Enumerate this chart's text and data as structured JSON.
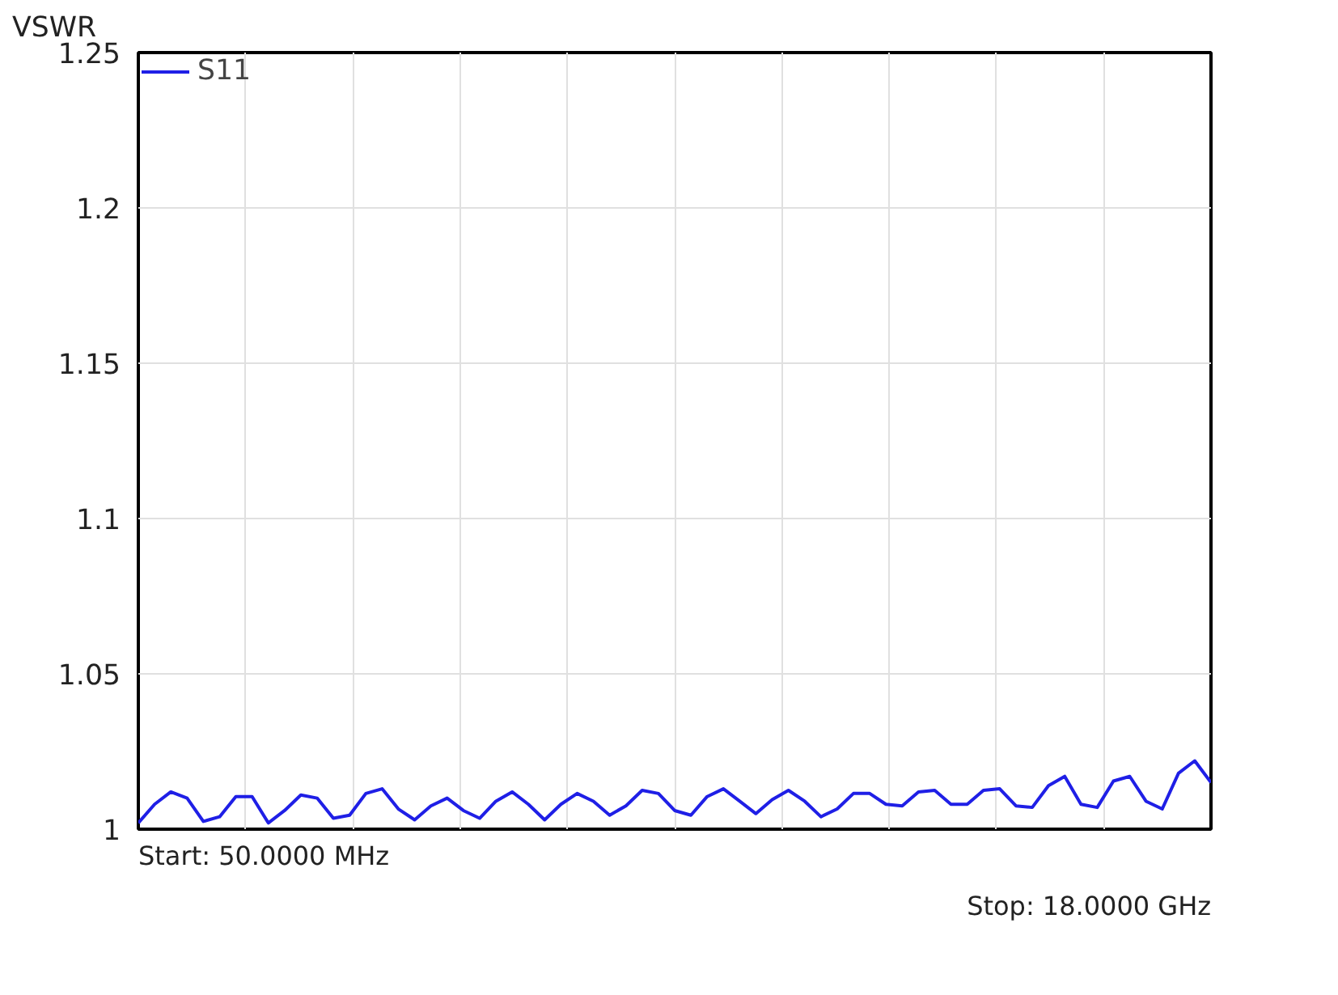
{
  "chart_data": {
    "type": "line",
    "ylabel": "VSWR",
    "categories": [
      null,
      null,
      null,
      null,
      null,
      null,
      null,
      null,
      null,
      null,
      null,
      null,
      null,
      null,
      null,
      null,
      null,
      null,
      null,
      null,
      null,
      null,
      null,
      null,
      null,
      null,
      null,
      null,
      null,
      null,
      null,
      null,
      null,
      null,
      null,
      null,
      null,
      null,
      null,
      null,
      null,
      null,
      null,
      null,
      null,
      null,
      null,
      null,
      null,
      null,
      null,
      null,
      null,
      null,
      null,
      null,
      null,
      null,
      null,
      null,
      null,
      null,
      null,
      null,
      null,
      null,
      null
    ],
    "series": [
      {
        "name": "S11",
        "color": "#1f1fe6",
        "values": [
          1.002,
          1.008,
          1.012,
          1.01,
          1.0025,
          1.004,
          1.0105,
          1.0105,
          1.002,
          1.006,
          1.011,
          1.01,
          1.0035,
          1.0045,
          1.0115,
          1.013,
          1.0065,
          1.003,
          1.0075,
          1.01,
          1.006,
          1.0035,
          1.009,
          1.012,
          1.008,
          1.003,
          1.008,
          1.0115,
          1.009,
          1.0045,
          1.0075,
          1.0125,
          1.0115,
          1.006,
          1.0045,
          1.0105,
          1.013,
          1.009,
          1.005,
          1.0095,
          1.0125,
          1.009,
          1.004,
          1.0065,
          1.0115,
          1.0115,
          1.008,
          1.0075,
          1.012,
          1.0125,
          1.008,
          1.008,
          1.0125,
          1.013,
          1.0075,
          1.007,
          1.014,
          1.017,
          1.008,
          1.007,
          1.0155,
          1.017,
          1.009,
          1.0065,
          1.018,
          1.022,
          1.015
        ]
      }
    ],
    "ylim": [
      1,
      1.25
    ],
    "yticks": [
      1,
      1.05,
      1.1,
      1.15,
      1.2,
      1.25
    ],
    "grid": true,
    "legend": "top left",
    "line_style": "solid",
    "annotations": [
      "Start: 50.0000 MHz",
      "Stop: 18.0000 GHz"
    ]
  }
}
